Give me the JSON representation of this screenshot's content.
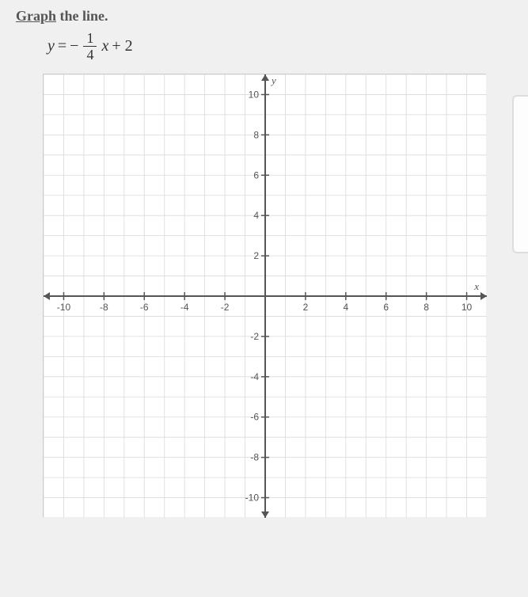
{
  "prompt": {
    "action": "Graph",
    "object": " the line."
  },
  "equation": {
    "lhs_var": "y",
    "equals": "=",
    "neg": "−",
    "frac_num": "1",
    "frac_den": "4",
    "rhs_var": "x",
    "tail": "+ 2"
  },
  "graph": {
    "type": "coordinate-grid",
    "xmin": -11,
    "xmax": 11,
    "ymin": -11,
    "ymax": 11,
    "minor_step": 1,
    "tick_step": 2,
    "x_axis_label": "x",
    "y_axis_label": "y",
    "grid_color": "#d9d9d9",
    "axis_color": "#555555",
    "tick_color": "#555555",
    "label_color": "#555555",
    "background_color": "#ffffff",
    "label_fontsize": 12,
    "x_ticks": [
      -10,
      -8,
      -6,
      -4,
      -2,
      2,
      4,
      6,
      8,
      10
    ],
    "y_ticks": [
      -10,
      -8,
      -6,
      -4,
      -2,
      2,
      4,
      6,
      8,
      10
    ]
  }
}
